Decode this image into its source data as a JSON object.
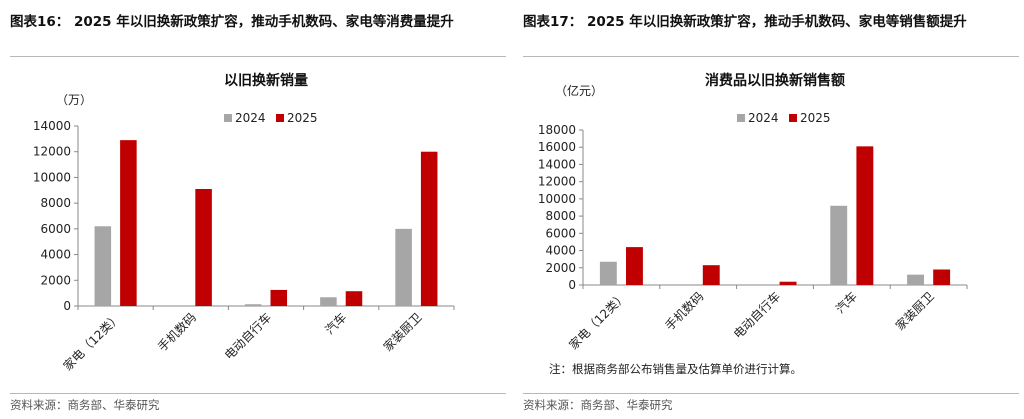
{
  "source_text": "资料来源：商务部、华泰研究",
  "charts": [
    {
      "figure_title": "图表16：  2025 年以旧换新政策扩容，推动手机数码、家电等消费量提升",
      "note": "",
      "chart_data": {
        "type": "bar",
        "title": "以旧换新销量",
        "unit_label": "（万）",
        "categories": [
          "家电（12类）",
          "手机数码",
          "电动自行车",
          "汽车",
          "家装厨卫"
        ],
        "series": [
          {
            "name": "2024",
            "values": [
              6200,
              0,
              138,
              680,
              6000
            ]
          },
          {
            "name": "2025",
            "values": [
              12900,
              9100,
              1250,
              1150,
              12000
            ]
          }
        ],
        "ylim": [
          0,
          14000
        ],
        "yticks": [
          0,
          2000,
          4000,
          6000,
          8000,
          10000,
          12000,
          14000
        ],
        "colors": [
          "#a6a6a6",
          "#c00000"
        ],
        "legend_position": "top-right",
        "grid": false
      }
    },
    {
      "figure_title": "图表17：  2025 年以旧换新政策扩容，推动手机数码、家电等销售额提升",
      "note": "注：根据商务部公布销售量及估算单价进行计算。",
      "chart_data": {
        "type": "bar",
        "title": "消费品以旧换新销售额",
        "unit_label": "（亿元）",
        "categories": [
          "家电（12类）",
          "手机数码",
          "电动自行车",
          "汽车",
          "家装厨卫"
        ],
        "series": [
          {
            "name": "2024",
            "values": [
              2700,
              0,
              0,
              9200,
              1200
            ]
          },
          {
            "name": "2025",
            "values": [
              4400,
              2300,
              380,
              16100,
              1800
            ]
          }
        ],
        "ylim": [
          0,
          18000
        ],
        "yticks": [
          0,
          2000,
          4000,
          6000,
          8000,
          10000,
          12000,
          14000,
          16000,
          18000
        ],
        "colors": [
          "#a6a6a6",
          "#c00000"
        ],
        "legend_position": "top-right",
        "grid": false
      }
    }
  ]
}
